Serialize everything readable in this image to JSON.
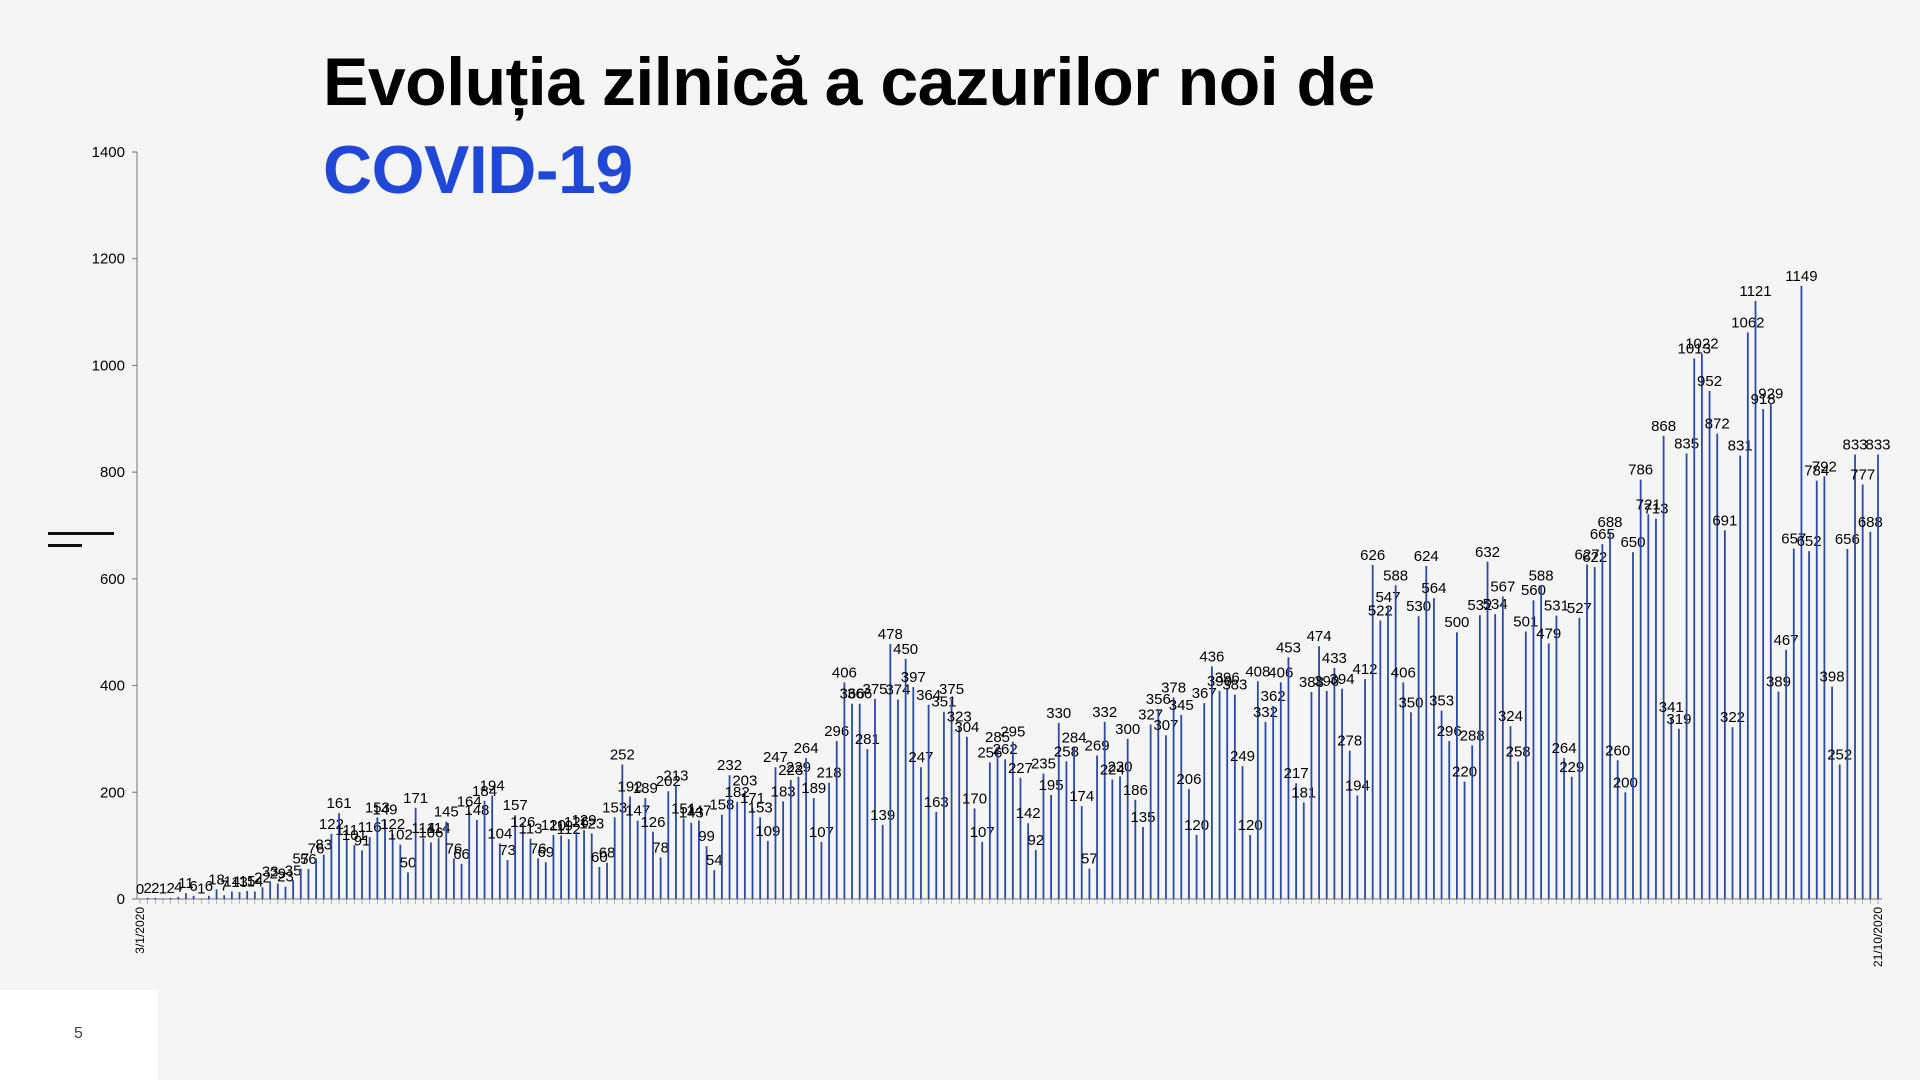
{
  "slide": {
    "title_line1": "Evoluția zilnică a cazurilor noi de",
    "title_line2": "COVID-19",
    "page_number": "5"
  },
  "colors": {
    "accent": "#1f48d6",
    "bar": "#2b4aa8",
    "background": "#f5f5f5"
  },
  "chart_data": {
    "type": "bar",
    "title": "",
    "xlabel": "",
    "ylabel": "",
    "ylim": [
      0,
      1400
    ],
    "yticks": [
      0,
      200,
      400,
      600,
      800,
      1000,
      1200,
      1400
    ],
    "grid": false,
    "x_axis_note": "daily dates from 3/1/2020 to 21/10/2020 (tick labels illegible at this resolution)",
    "x_first_label": "3/1/2020",
    "x_last_label": "21/10/2020",
    "series": [
      {
        "values": [
          0,
          2,
          2,
          1,
          2,
          4,
          11,
          6,
          1,
          6,
          18,
          7,
          14,
          13,
          15,
          14,
          22,
          33,
          29,
          23,
          35,
          57,
          56,
          76,
          83,
          122,
          161,
          111,
          101,
          91,
          116,
          153,
          149,
          122,
          102,
          50,
          171,
          114,
          106,
          114,
          145,
          76,
          66,
          164,
          148,
          184,
          194,
          104,
          73,
          157,
          126,
          113,
          76,
          69,
          120,
          119,
          112,
          126,
          129,
          123,
          60,
          68,
          153,
          252,
          192,
          147,
          189,
          126,
          78,
          202,
          213,
          151,
          143,
          147,
          99,
          54,
          158,
          232,
          182,
          203,
          171,
          153,
          109,
          247,
          183,
          223,
          229,
          264,
          189,
          107,
          218,
          296,
          406,
          366,
          366,
          281,
          375,
          139,
          478,
          374,
          450,
          397,
          247,
          364,
          163,
          351,
          375,
          323,
          304,
          170,
          107,
          256,
          285,
          262,
          295,
          227,
          142,
          92,
          235,
          195,
          330,
          258,
          284,
          174,
          57,
          269,
          332,
          224,
          230,
          300,
          186,
          135,
          327,
          356,
          307,
          378,
          345,
          206,
          120,
          367,
          436,
          390,
          396,
          383,
          249,
          120,
          408,
          332,
          362,
          406,
          453,
          217,
          181,
          388,
          474,
          390,
          433,
          394,
          278,
          194,
          412,
          626,
          522,
          547,
          588,
          406,
          350,
          530,
          624,
          564,
          353,
          296,
          500,
          220,
          288,
          532,
          632,
          534,
          567,
          324,
          258,
          501,
          560,
          588,
          479,
          531,
          264,
          229,
          527,
          627,
          622,
          665,
          688,
          260,
          200,
          650,
          786,
          721,
          713,
          868,
          341,
          319,
          835,
          1013,
          1022,
          952,
          872,
          691,
          322,
          831,
          1062,
          1121,
          918,
          929,
          389,
          467,
          657,
          1149,
          652,
          784,
          792,
          398,
          252,
          656,
          833,
          777,
          688,
          833
        ]
      }
    ]
  }
}
